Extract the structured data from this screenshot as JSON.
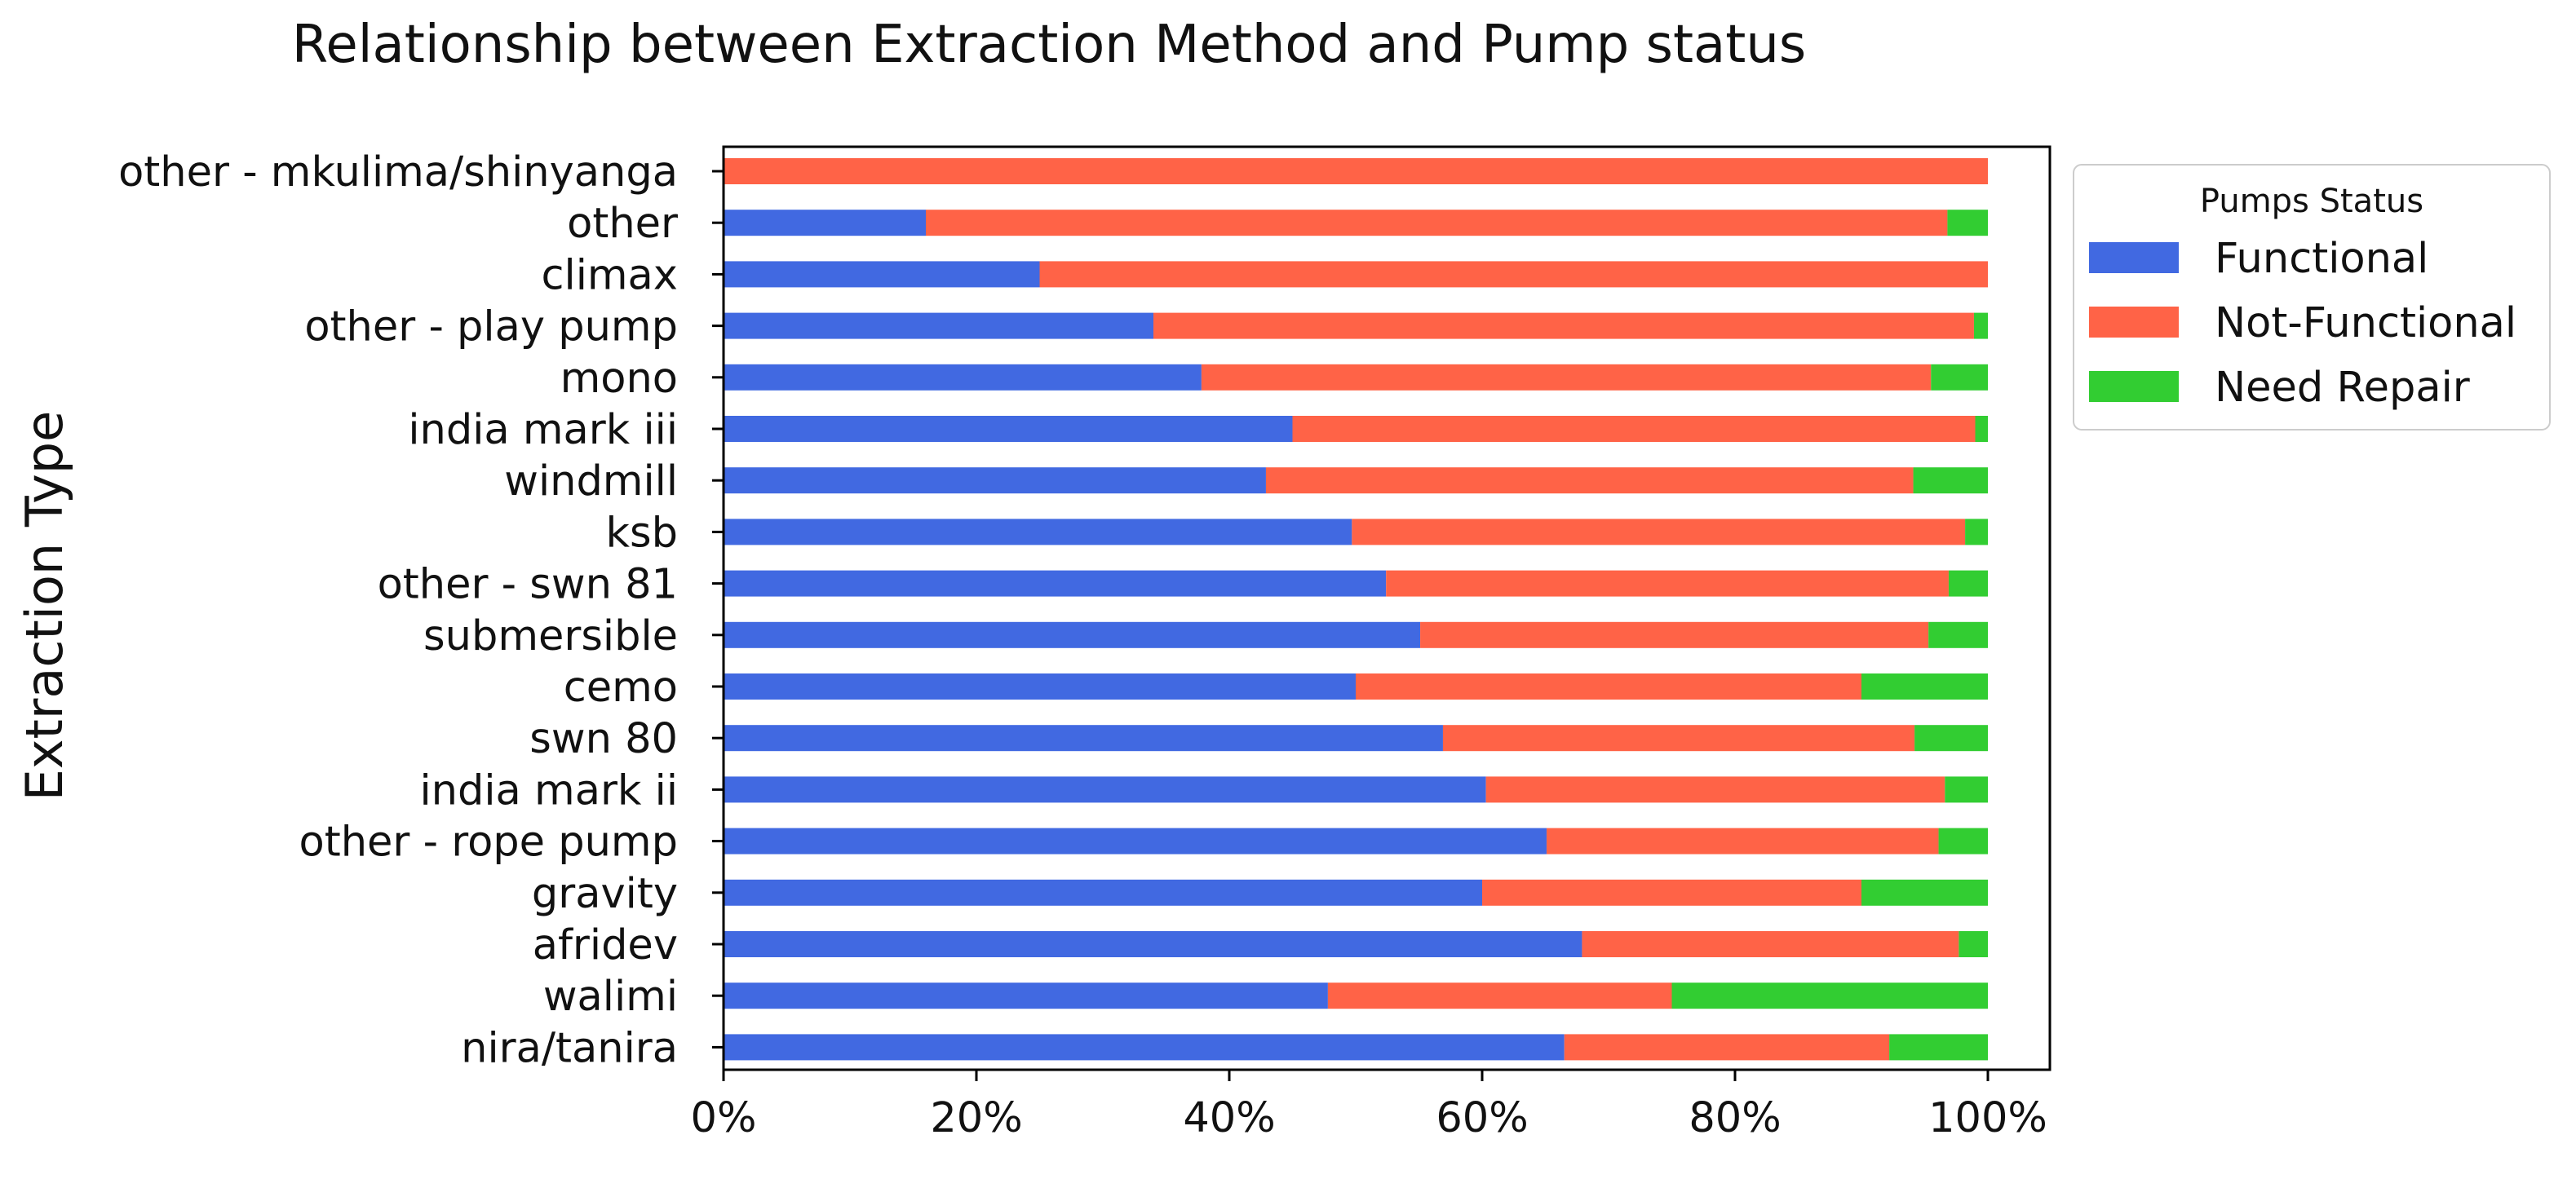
{
  "chart_data": {
    "type": "bar",
    "orientation": "horizontal",
    "stacked": true,
    "title": "Relationship between Extraction Method and Pump status",
    "xlabel": "",
    "ylabel": "Extraction Type",
    "xlim": [
      0,
      100
    ],
    "x_ticks": [
      "0%",
      "20%",
      "40%",
      "60%",
      "80%",
      "100%"
    ],
    "grid": false,
    "legend": {
      "title": "Pumps Status",
      "placement": "upper-right-outside"
    },
    "categories": [
      "other - mkulima/shinyanga",
      "other",
      "climax",
      "other - play pump",
      "mono",
      "india mark iii",
      "windmill",
      "ksb",
      "other - swn 81",
      "submersible",
      "cemo",
      "swn 80",
      "india mark ii",
      "other - rope pump",
      "gravity",
      "afridev",
      "walimi",
      "nira/tanira"
    ],
    "series": [
      {
        "name": "Functional",
        "color": "#4169E1",
        "values": [
          0,
          16,
          25,
          34,
          37.8,
          45,
          42.9,
          49.7,
          52.4,
          55.1,
          50,
          56.9,
          60.3,
          65.1,
          60,
          67.9,
          47.8,
          66.5
        ]
      },
      {
        "name": "Not-Functional",
        "color": "#FF6347",
        "values": [
          100,
          80.8,
          75,
          64.9,
          57.7,
          54,
          51.2,
          48.5,
          44.5,
          40.2,
          40,
          37.3,
          36.3,
          31,
          30,
          29.8,
          27.2,
          25.7
        ]
      },
      {
        "name": "Need Repair",
        "color": "#32CD32",
        "values": [
          0,
          3.2,
          0,
          1.1,
          4.5,
          1,
          5.9,
          1.8,
          3.1,
          4.7,
          10,
          5.8,
          3.4,
          3.9,
          10,
          2.3,
          25,
          7.8
        ]
      }
    ]
  }
}
